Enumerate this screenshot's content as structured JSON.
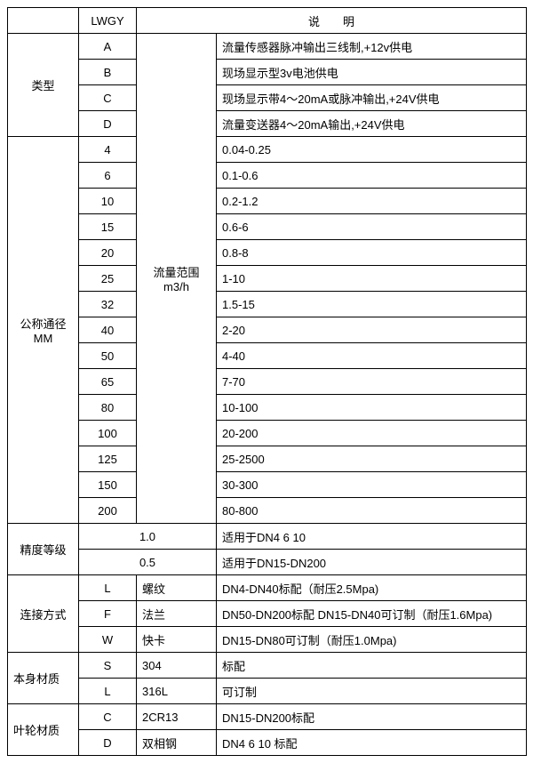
{
  "header": {
    "lwgy": "LWGY",
    "desc": "说　　明"
  },
  "type": {
    "label": "类型",
    "rows": [
      {
        "code": "A",
        "desc": "流量传感器脉冲输出三线制,+12v供电"
      },
      {
        "code": "B",
        "desc": "现场显示型3v电池供电"
      },
      {
        "code": "C",
        "desc": "现场显示带4～20mA或脉冲输出,+24V供电"
      },
      {
        "code": "D",
        "desc": "流量变送器4～20mA输出,+24V供电"
      }
    ]
  },
  "dn": {
    "label_l1": "公称通径",
    "label_l2": "MM",
    "range_l1": "流量范围",
    "range_l2": "m3/h",
    "rows": [
      {
        "size": "4",
        "range": "0.04-0.25"
      },
      {
        "size": "6",
        "range": "0.1-0.6"
      },
      {
        "size": "10",
        "range": "0.2-1.2"
      },
      {
        "size": "15",
        "range": "0.6-6"
      },
      {
        "size": "20",
        "range": "0.8-8"
      },
      {
        "size": "25",
        "range": "1-10"
      },
      {
        "size": "32",
        "range": "1.5-15"
      },
      {
        "size": "40",
        "range": "2-20"
      },
      {
        "size": "50",
        "range": "4-40"
      },
      {
        "size": "65",
        "range": "7-70"
      },
      {
        "size": "80",
        "range": "10-100"
      },
      {
        "size": "100",
        "range": "20-200"
      },
      {
        "size": "125",
        "range": "25-2500"
      },
      {
        "size": "150",
        "range": "30-300"
      },
      {
        "size": "200",
        "range": "80-800"
      }
    ]
  },
  "accuracy": {
    "label": "精度等级",
    "rows": [
      {
        "val": "1.0",
        "desc": "适用于DN4  6  10"
      },
      {
        "val": "0.5",
        "desc": "适用于DN15-DN200"
      }
    ]
  },
  "conn": {
    "label": "连接方式",
    "rows": [
      {
        "code": "L",
        "name": "螺纹",
        "desc": "DN4-DN40标配（耐压2.5Mpa)"
      },
      {
        "code": "F",
        "name": "法兰",
        "desc": "DN50-DN200标配 DN15-DN40可订制（耐压1.6Mpa)"
      },
      {
        "code": "W",
        "name": "快卡",
        "desc": "DN15-DN80可订制（耐压1.0Mpa)"
      }
    ]
  },
  "body": {
    "label": "本身材质",
    "rows": [
      {
        "code": "S",
        "name": "304",
        "desc": "标配"
      },
      {
        "code": "L",
        "name": "316L",
        "desc": "可订制"
      }
    ]
  },
  "impeller": {
    "label": "叶轮材质",
    "rows": [
      {
        "code": "C",
        "name": "2CR13",
        "desc": "DN15-DN200标配"
      },
      {
        "code": "D",
        "name": "双相钢",
        "desc": "DN4 6 10 标配"
      }
    ]
  }
}
